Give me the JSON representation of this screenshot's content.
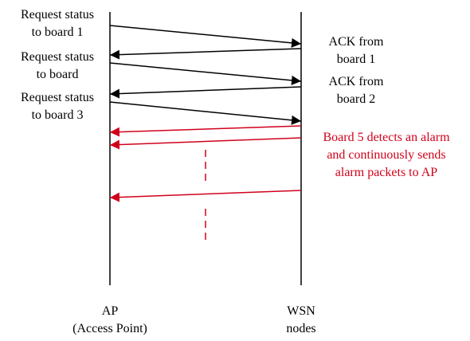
{
  "left_labels": [
    {
      "line1": "Request status",
      "line2": "to board 1"
    },
    {
      "line1": "Request status",
      "line2": "to board"
    },
    {
      "line1": "Request status",
      "line2": "to board 3"
    }
  ],
  "right_labels": [
    {
      "line1": "ACK from",
      "line2": "board 1"
    },
    {
      "line1": "ACK from",
      "line2": "board 2"
    }
  ],
  "alarm_note": {
    "line1": "Board 5 detects an alarm",
    "line2": "and continuously sends",
    "line3": "alarm packets to AP"
  },
  "axes": {
    "ap_name": "AP",
    "ap_desc": "(Access Point)",
    "wsn_name": "WSN",
    "wsn_desc": "nodes"
  },
  "colors": {
    "normal": "#000000",
    "alarm": "#d0021b"
  }
}
